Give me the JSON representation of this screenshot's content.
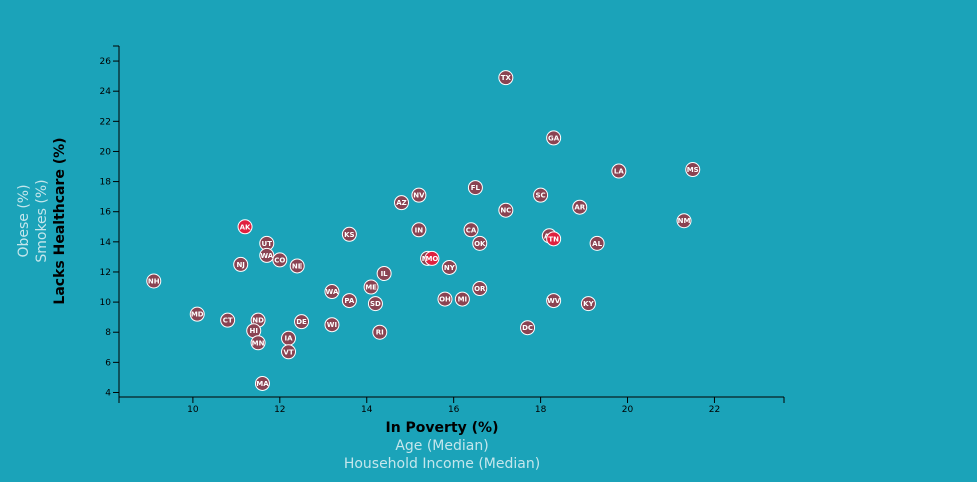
{
  "chart_data": {
    "type": "scatter",
    "xlabel": "In Poverty (%)",
    "xlabels_inactive": [
      "Age (Median)",
      "Household Income (Median)"
    ],
    "ylabel": "Lacks Healthcare (%)",
    "ylabels_inactive": [
      "Smokes (%)",
      "Obese (%)"
    ],
    "xlim": [
      8.3,
      23.6
    ],
    "ylim": [
      3.7,
      27.0
    ],
    "xticks": [
      10,
      12,
      14,
      16,
      18,
      20,
      22
    ],
    "yticks": [
      4,
      6,
      8,
      10,
      12,
      14,
      16,
      18,
      20,
      22,
      24,
      26
    ],
    "grid": false,
    "marker_color": "#8a4352",
    "highlight_color": "#e0213f",
    "background": "#1ba3b9",
    "points": [
      {
        "abbr": "TX",
        "x": 17.2,
        "y": 24.9
      },
      {
        "abbr": "GA",
        "x": 18.3,
        "y": 20.9
      },
      {
        "abbr": "LA",
        "x": 19.8,
        "y": 18.7
      },
      {
        "abbr": "MS",
        "x": 21.5,
        "y": 18.8
      },
      {
        "abbr": "FL",
        "x": 16.5,
        "y": 17.6
      },
      {
        "abbr": "NV",
        "x": 15.2,
        "y": 17.1
      },
      {
        "abbr": "SC",
        "x": 18.0,
        "y": 17.1
      },
      {
        "abbr": "AZ",
        "x": 14.8,
        "y": 16.6
      },
      {
        "abbr": "NC",
        "x": 17.2,
        "y": 16.1
      },
      {
        "abbr": "AR",
        "x": 18.9,
        "y": 16.3
      },
      {
        "abbr": "NM",
        "x": 21.3,
        "y": 15.4
      },
      {
        "abbr": "AK",
        "x": 11.2,
        "y": 15.0,
        "hl": true
      },
      {
        "abbr": "IN",
        "x": 15.2,
        "y": 14.8
      },
      {
        "abbr": "CA",
        "x": 16.4,
        "y": 14.8
      },
      {
        "abbr": "KS",
        "x": 13.6,
        "y": 14.5
      },
      {
        "abbr": "AZ",
        "x": 18.2,
        "y": 14.4
      },
      {
        "abbr": "TN",
        "x": 18.3,
        "y": 14.2,
        "hl": true
      },
      {
        "abbr": "OK",
        "x": 16.6,
        "y": 13.9
      },
      {
        "abbr": "AL",
        "x": 19.3,
        "y": 13.9
      },
      {
        "abbr": "UT",
        "x": 11.7,
        "y": 13.9
      },
      {
        "abbr": "WA",
        "x": 11.7,
        "y": 13.1
      },
      {
        "abbr": "CO",
        "x": 12.0,
        "y": 12.8
      },
      {
        "abbr": "MT",
        "x": 15.4,
        "y": 12.9
      },
      {
        "abbr": "MO",
        "x": 15.5,
        "y": 12.9,
        "hl": true
      },
      {
        "abbr": "NJ",
        "x": 11.1,
        "y": 12.5
      },
      {
        "abbr": "NE",
        "x": 12.4,
        "y": 12.4
      },
      {
        "abbr": "NY",
        "x": 15.9,
        "y": 12.3
      },
      {
        "abbr": "IL",
        "x": 14.4,
        "y": 11.9
      },
      {
        "abbr": "NH",
        "x": 9.1,
        "y": 11.4
      },
      {
        "abbr": "ME",
        "x": 14.1,
        "y": 11.0
      },
      {
        "abbr": "OR",
        "x": 16.6,
        "y": 10.9
      },
      {
        "abbr": "WA",
        "x": 13.2,
        "y": 10.7
      },
      {
        "abbr": "OH",
        "x": 15.8,
        "y": 10.2
      },
      {
        "abbr": "MI",
        "x": 16.2,
        "y": 10.2
      },
      {
        "abbr": "PA",
        "x": 13.6,
        "y": 10.1
      },
      {
        "abbr": "WV",
        "x": 18.3,
        "y": 10.1
      },
      {
        "abbr": "KY",
        "x": 19.1,
        "y": 9.9
      },
      {
        "abbr": "SD",
        "x": 14.2,
        "y": 9.9
      },
      {
        "abbr": "MD",
        "x": 10.1,
        "y": 9.2
      },
      {
        "abbr": "CT",
        "x": 10.8,
        "y": 8.8
      },
      {
        "abbr": "ND",
        "x": 11.5,
        "y": 8.8
      },
      {
        "abbr": "DE",
        "x": 12.5,
        "y": 8.7
      },
      {
        "abbr": "WI",
        "x": 13.2,
        "y": 8.5
      },
      {
        "abbr": "DC",
        "x": 17.7,
        "y": 8.3
      },
      {
        "abbr": "RI",
        "x": 14.3,
        "y": 8.0
      },
      {
        "abbr": "HI",
        "x": 11.4,
        "y": 8.1
      },
      {
        "abbr": "IA",
        "x": 12.2,
        "y": 7.6
      },
      {
        "abbr": "MN",
        "x": 11.5,
        "y": 7.3
      },
      {
        "abbr": "VT",
        "x": 12.2,
        "y": 6.7
      },
      {
        "abbr": "MA",
        "x": 11.6,
        "y": 4.6
      }
    ]
  }
}
